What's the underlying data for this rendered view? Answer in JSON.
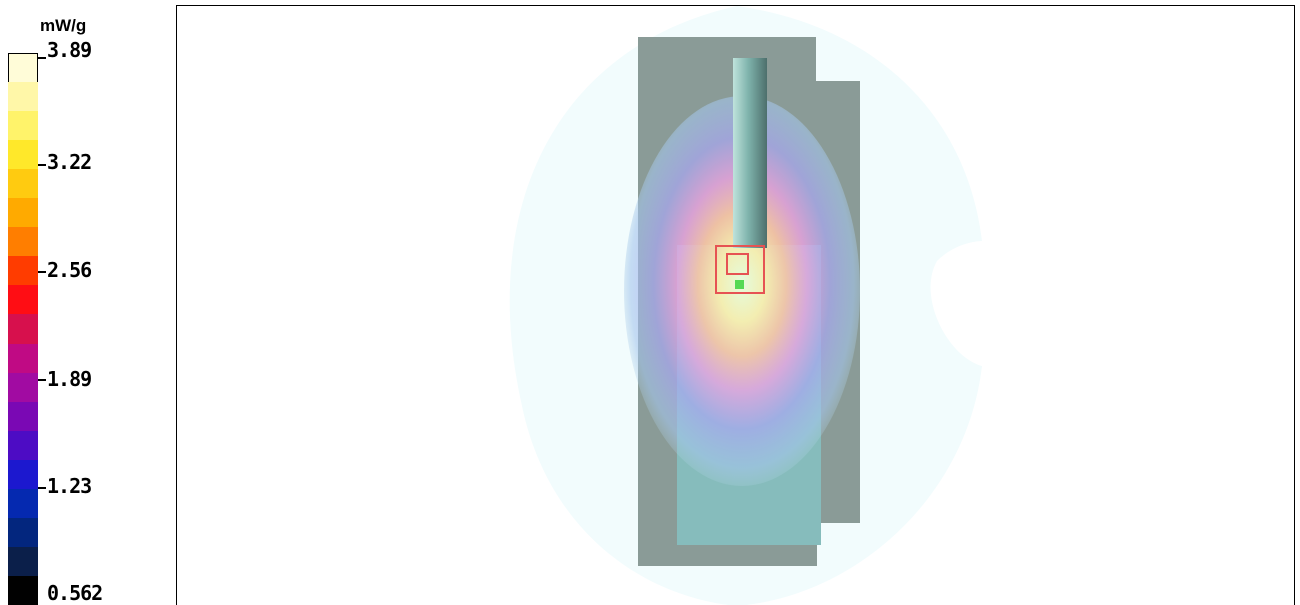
{
  "legend": {
    "unit": "mW/g",
    "ticks": [
      "3.89",
      "3.22",
      "2.56",
      "1.89",
      "1.23",
      "0.562"
    ],
    "colors": [
      "#fffcd8",
      "#fff7a8",
      "#fff36a",
      "#ffe82a",
      "#ffcb10",
      "#ffaa00",
      "#ff7e00",
      "#ff3c00",
      "#ff0d14",
      "#d7104d",
      "#c00a84",
      "#a10ba2",
      "#7a08b4",
      "#4d0cc4",
      "#1c18cf",
      "#0529b0",
      "#03267e",
      "#0b1f4a",
      "#010101"
    ]
  },
  "plot": {
    "colors": {
      "background_halo": "#f2fcfd",
      "block_dark": "#8a9b97",
      "block_light": "#86bcbc",
      "rod": "#79a8a2",
      "marker": "#e65353",
      "hotspot": "#54d954"
    }
  }
}
